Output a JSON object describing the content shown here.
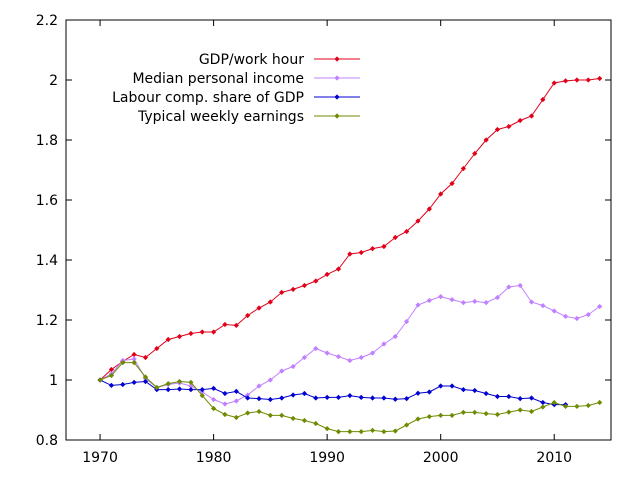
{
  "chart_data": {
    "type": "line",
    "title": "",
    "xlabel": "",
    "ylabel": "",
    "xlim": [
      1967,
      2015
    ],
    "ylim": [
      0.8,
      2.2
    ],
    "x_ticks": [
      1970,
      1980,
      1990,
      2000,
      2010
    ],
    "x_tick_labels": [
      "1970",
      "1980",
      "1990",
      "2000",
      "2010"
    ],
    "y_ticks": [
      0.8,
      1.0,
      1.2,
      1.4,
      1.6,
      1.8,
      2.0,
      2.2
    ],
    "y_tick_labels": [
      "0.8",
      "1",
      "1.2",
      "1.4",
      "1.6",
      "1.8",
      "2",
      "2.2"
    ],
    "grid": false,
    "legend_position": "top-center",
    "series": [
      {
        "name": "GDP/work hour",
        "color": "#e0001a",
        "x": [
          1970,
          1971,
          1972,
          1973,
          1974,
          1975,
          1976,
          1977,
          1978,
          1979,
          1980,
          1981,
          1982,
          1983,
          1984,
          1985,
          1986,
          1987,
          1988,
          1989,
          1990,
          1991,
          1992,
          1993,
          1994,
          1995,
          1996,
          1997,
          1998,
          1999,
          2000,
          2001,
          2002,
          2003,
          2004,
          2005,
          2006,
          2007,
          2008,
          2009,
          2010,
          2011,
          2012,
          2013,
          2014
        ],
        "values": [
          1.0,
          1.035,
          1.062,
          1.085,
          1.075,
          1.105,
          1.135,
          1.145,
          1.155,
          1.16,
          1.16,
          1.185,
          1.182,
          1.215,
          1.24,
          1.26,
          1.292,
          1.302,
          1.315,
          1.33,
          1.352,
          1.37,
          1.42,
          1.425,
          1.438,
          1.445,
          1.475,
          1.495,
          1.53,
          1.57,
          1.62,
          1.655,
          1.705,
          1.755,
          1.8,
          1.835,
          1.845,
          1.865,
          1.88,
          1.935,
          1.99,
          1.997,
          2.0,
          2.0,
          2.005
        ]
      },
      {
        "name": "Median personal income",
        "color": "#c080ff",
        "x": [
          1970,
          1971,
          1972,
          1973,
          1974,
          1975,
          1976,
          1977,
          1978,
          1979,
          1980,
          1981,
          1982,
          1983,
          1984,
          1985,
          1986,
          1987,
          1988,
          1989,
          1990,
          1991,
          1992,
          1993,
          1994,
          1995,
          1996,
          1997,
          1998,
          1999,
          2000,
          2001,
          2002,
          2003,
          2004,
          2005,
          2006,
          2007,
          2008,
          2009,
          2010,
          2011,
          2012,
          2013,
          2014
        ],
        "values": [
          1.0,
          1.02,
          1.065,
          1.07,
          1.005,
          0.975,
          0.985,
          0.99,
          0.98,
          0.96,
          0.935,
          0.92,
          0.93,
          0.95,
          0.98,
          1.0,
          1.03,
          1.045,
          1.075,
          1.105,
          1.09,
          1.078,
          1.065,
          1.075,
          1.09,
          1.12,
          1.145,
          1.195,
          1.25,
          1.265,
          1.278,
          1.268,
          1.258,
          1.262,
          1.258,
          1.275,
          1.31,
          1.315,
          1.26,
          1.248,
          1.23,
          1.212,
          1.205,
          1.218,
          1.245
        ]
      },
      {
        "name": "Labour comp. share of GDP",
        "color": "#0000d0",
        "x": [
          1970,
          1971,
          1972,
          1973,
          1974,
          1975,
          1976,
          1977,
          1978,
          1979,
          1980,
          1981,
          1982,
          1983,
          1984,
          1985,
          1986,
          1987,
          1988,
          1989,
          1990,
          1991,
          1992,
          1993,
          1994,
          1995,
          1996,
          1997,
          1998,
          1999,
          2000,
          2001,
          2002,
          2003,
          2004,
          2005,
          2006,
          2007,
          2008,
          2009,
          2010,
          2011
        ],
        "values": [
          1.0,
          0.982,
          0.985,
          0.992,
          0.995,
          0.968,
          0.968,
          0.97,
          0.968,
          0.968,
          0.972,
          0.955,
          0.962,
          0.94,
          0.938,
          0.935,
          0.94,
          0.95,
          0.955,
          0.94,
          0.942,
          0.942,
          0.948,
          0.942,
          0.94,
          0.94,
          0.936,
          0.938,
          0.956,
          0.96,
          0.98,
          0.98,
          0.968,
          0.965,
          0.955,
          0.945,
          0.945,
          0.938,
          0.94,
          0.925,
          0.918,
          0.918
        ]
      },
      {
        "name": "Typical weekly earnings",
        "color": "#6e8b00",
        "x": [
          1970,
          1971,
          1972,
          1973,
          1974,
          1975,
          1976,
          1977,
          1978,
          1979,
          1980,
          1981,
          1982,
          1983,
          1984,
          1985,
          1986,
          1987,
          1988,
          1989,
          1990,
          1991,
          1992,
          1993,
          1994,
          1995,
          1996,
          1997,
          1998,
          1999,
          2000,
          2001,
          2002,
          2003,
          2004,
          2005,
          2006,
          2007,
          2008,
          2009,
          2010,
          2011,
          2012,
          2013,
          2014
        ],
        "values": [
          1.0,
          1.015,
          1.058,
          1.058,
          1.01,
          0.975,
          0.988,
          0.995,
          0.992,
          0.948,
          0.905,
          0.885,
          0.875,
          0.89,
          0.895,
          0.882,
          0.882,
          0.872,
          0.865,
          0.855,
          0.838,
          0.828,
          0.828,
          0.828,
          0.832,
          0.828,
          0.83,
          0.85,
          0.87,
          0.878,
          0.882,
          0.882,
          0.892,
          0.892,
          0.888,
          0.885,
          0.893,
          0.9,
          0.895,
          0.91,
          0.925,
          0.912,
          0.912,
          0.915,
          0.925
        ]
      }
    ]
  }
}
